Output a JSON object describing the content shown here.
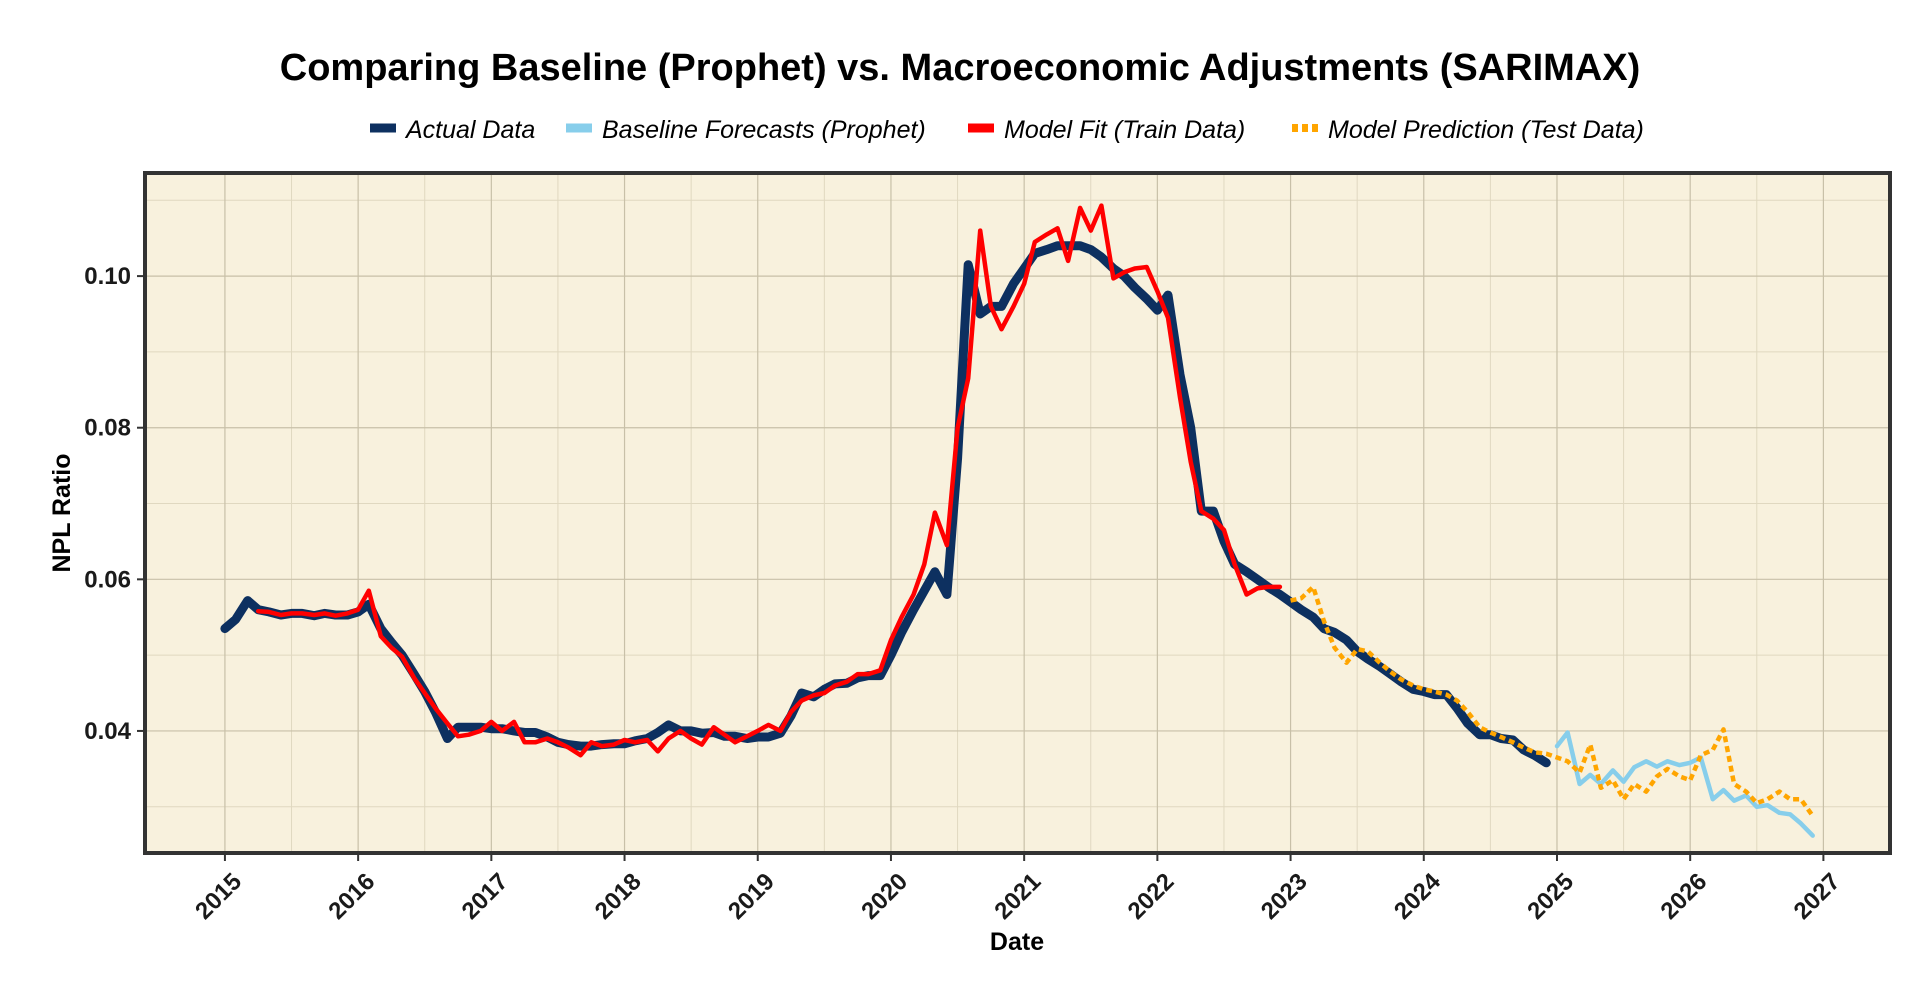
{
  "chart_data": {
    "type": "line",
    "title": "Comparing Baseline (Prophet) vs. Macroeconomic Adjustments (SARIMAX)",
    "xlabel": "Date",
    "ylabel": "NPL Ratio",
    "xlim": [
      2014.4,
      2027.5
    ],
    "ylim": [
      0.0239,
      0.1136
    ],
    "x_ticks": [
      {
        "value": 2015,
        "label": "2015"
      },
      {
        "value": 2016,
        "label": "2016"
      },
      {
        "value": 2017,
        "label": "2017"
      },
      {
        "value": 2018,
        "label": "2018"
      },
      {
        "value": 2019,
        "label": "2019"
      },
      {
        "value": 2020,
        "label": "2020"
      },
      {
        "value": 2021,
        "label": "2021"
      },
      {
        "value": 2022,
        "label": "2022"
      },
      {
        "value": 2023,
        "label": "2023"
      },
      {
        "value": 2024,
        "label": "2024"
      },
      {
        "value": 2025,
        "label": "2025"
      },
      {
        "value": 2026,
        "label": "2026"
      },
      {
        "value": 2027,
        "label": "2027"
      }
    ],
    "y_ticks": [
      {
        "value": 0.04,
        "label": "0.04"
      },
      {
        "value": 0.06,
        "label": "0.06"
      },
      {
        "value": 0.08,
        "label": "0.08"
      },
      {
        "value": 0.1,
        "label": "0.10"
      }
    ],
    "grid": true,
    "background_color": "#f8f1dd",
    "legend_position": "top",
    "series": [
      {
        "name": "Actual Data",
        "color": "#0d3060",
        "style": "solid-thick",
        "x": [
          2015.0,
          2015.08,
          2015.17,
          2015.25,
          2015.33,
          2015.42,
          2015.5,
          2015.58,
          2015.67,
          2015.75,
          2015.83,
          2015.92,
          2016.0,
          2016.08,
          2016.17,
          2016.25,
          2016.33,
          2016.42,
          2016.5,
          2016.58,
          2016.67,
          2016.75,
          2016.83,
          2016.92,
          2017.0,
          2017.08,
          2017.17,
          2017.25,
          2017.33,
          2017.42,
          2017.5,
          2017.58,
          2017.67,
          2017.75,
          2017.83,
          2017.92,
          2018.0,
          2018.08,
          2018.17,
          2018.25,
          2018.33,
          2018.42,
          2018.5,
          2018.58,
          2018.67,
          2018.75,
          2018.83,
          2018.92,
          2019.0,
          2019.08,
          2019.17,
          2019.25,
          2019.33,
          2019.42,
          2019.5,
          2019.58,
          2019.67,
          2019.75,
          2019.83,
          2019.92,
          2020.0,
          2020.08,
          2020.17,
          2020.25,
          2020.33,
          2020.42,
          2020.5,
          2020.58,
          2020.67,
          2020.75,
          2020.83,
          2020.92,
          2021.0,
          2021.08,
          2021.17,
          2021.25,
          2021.33,
          2021.42,
          2021.5,
          2021.58,
          2021.67,
          2021.75,
          2021.83,
          2021.92,
          2022.0,
          2022.08,
          2022.17,
          2022.25,
          2022.33,
          2022.42,
          2022.5,
          2022.58,
          2022.67,
          2022.75,
          2022.83,
          2022.92,
          2023.0,
          2023.08,
          2023.17,
          2023.25,
          2023.33,
          2023.42,
          2023.5,
          2023.58,
          2023.67,
          2023.75,
          2023.83,
          2023.92,
          2024.0,
          2024.08,
          2024.17,
          2024.25,
          2024.33,
          2024.42,
          2024.5,
          2024.58,
          2024.67,
          2024.75,
          2024.83,
          2024.92
        ],
        "y": [
          0.0535,
          0.0547,
          0.0572,
          0.056,
          0.0557,
          0.0553,
          0.0555,
          0.0555,
          0.0552,
          0.0555,
          0.0553,
          0.0553,
          0.0557,
          0.0567,
          0.0535,
          0.0517,
          0.05,
          0.0475,
          0.0452,
          0.0425,
          0.039,
          0.0405,
          0.0405,
          0.0405,
          0.0403,
          0.0403,
          0.04,
          0.0398,
          0.0398,
          0.0392,
          0.0385,
          0.0382,
          0.038,
          0.038,
          0.0382,
          0.0383,
          0.0383,
          0.0387,
          0.039,
          0.0398,
          0.0408,
          0.04,
          0.04,
          0.0397,
          0.0398,
          0.0393,
          0.0393,
          0.039,
          0.0392,
          0.0392,
          0.0397,
          0.042,
          0.045,
          0.0445,
          0.0455,
          0.0462,
          0.0463,
          0.047,
          0.0473,
          0.0473,
          0.05,
          0.053,
          0.056,
          0.0585,
          0.061,
          0.058,
          0.076,
          0.1015,
          0.095,
          0.096,
          0.096,
          0.099,
          0.101,
          0.103,
          0.1035,
          0.104,
          0.104,
          0.104,
          0.1035,
          0.1025,
          0.101,
          0.1,
          0.0985,
          0.097,
          0.0955,
          0.0975,
          0.087,
          0.08,
          0.069,
          0.069,
          0.065,
          0.062,
          0.061,
          0.06,
          0.059,
          0.058,
          0.057,
          0.056,
          0.055,
          0.0535,
          0.053,
          0.052,
          0.0505,
          0.0495,
          0.0485,
          0.0475,
          0.0465,
          0.0455,
          0.0452,
          0.0448,
          0.0448,
          0.043,
          0.041,
          0.0395,
          0.0395,
          0.039,
          0.0388,
          0.0375,
          0.0368,
          0.0358
        ]
      },
      {
        "name": "Baseline Forecasts (Prophet)",
        "color": "#87ceeb",
        "style": "solid",
        "x": [
          2025.0,
          2025.08,
          2025.17,
          2025.25,
          2025.33,
          2025.42,
          2025.5,
          2025.58,
          2025.67,
          2025.75,
          2025.83,
          2025.92,
          2026.0,
          2026.08,
          2026.17,
          2026.25,
          2026.33,
          2026.42,
          2026.5,
          2026.58,
          2026.67,
          2026.75,
          2026.83,
          2026.92
        ],
        "y": [
          0.038,
          0.0398,
          0.033,
          0.0342,
          0.033,
          0.0348,
          0.0333,
          0.0352,
          0.036,
          0.0353,
          0.036,
          0.0355,
          0.0358,
          0.0365,
          0.031,
          0.0322,
          0.0308,
          0.0315,
          0.03,
          0.0302,
          0.0292,
          0.029,
          0.0278,
          0.0262
        ]
      },
      {
        "name": "Model Fit (Train Data)",
        "color": "#ff0000",
        "style": "solid",
        "x": [
          2015.25,
          2015.33,
          2015.42,
          2015.5,
          2015.58,
          2015.67,
          2015.75,
          2015.83,
          2015.92,
          2016.0,
          2016.08,
          2016.17,
          2016.25,
          2016.33,
          2016.42,
          2016.5,
          2016.58,
          2016.67,
          2016.75,
          2016.83,
          2016.92,
          2017.0,
          2017.08,
          2017.17,
          2017.25,
          2017.33,
          2017.42,
          2017.5,
          2017.58,
          2017.67,
          2017.75,
          2017.83,
          2017.92,
          2018.0,
          2018.08,
          2018.17,
          2018.25,
          2018.33,
          2018.42,
          2018.5,
          2018.58,
          2018.67,
          2018.75,
          2018.83,
          2018.92,
          2019.0,
          2019.08,
          2019.17,
          2019.25,
          2019.33,
          2019.42,
          2019.5,
          2019.58,
          2019.67,
          2019.75,
          2019.83,
          2019.92,
          2020.0,
          2020.08,
          2020.17,
          2020.25,
          2020.33,
          2020.42,
          2020.5,
          2020.58,
          2020.67,
          2020.75,
          2020.83,
          2020.92,
          2021.0,
          2021.08,
          2021.17,
          2021.25,
          2021.33,
          2021.42,
          2021.5,
          2021.58,
          2021.67,
          2021.75,
          2021.83,
          2021.92,
          2022.0,
          2022.08,
          2022.17,
          2022.25,
          2022.33,
          2022.42,
          2022.5,
          2022.58,
          2022.67,
          2022.75,
          2022.83,
          2022.92
        ],
        "y": [
          0.0558,
          0.0557,
          0.0553,
          0.0555,
          0.0555,
          0.0553,
          0.0555,
          0.0552,
          0.0555,
          0.056,
          0.0585,
          0.0525,
          0.051,
          0.0498,
          0.047,
          0.045,
          0.043,
          0.041,
          0.0393,
          0.0395,
          0.04,
          0.0412,
          0.04,
          0.0412,
          0.0385,
          0.0385,
          0.039,
          0.0385,
          0.0378,
          0.0368,
          0.0385,
          0.038,
          0.0382,
          0.0388,
          0.0385,
          0.0388,
          0.0373,
          0.039,
          0.04,
          0.039,
          0.0382,
          0.0405,
          0.0395,
          0.0385,
          0.0393,
          0.04,
          0.0408,
          0.04,
          0.0425,
          0.044,
          0.0447,
          0.045,
          0.046,
          0.0465,
          0.0475,
          0.0475,
          0.048,
          0.052,
          0.055,
          0.058,
          0.062,
          0.0688,
          0.0645,
          0.08,
          0.0865,
          0.106,
          0.096,
          0.093,
          0.096,
          0.099,
          0.1045,
          0.1055,
          0.1063,
          0.102,
          0.109,
          0.106,
          0.1093,
          0.0997,
          0.1005,
          0.101,
          0.1012,
          0.098,
          0.0945,
          0.084,
          0.0755,
          0.069,
          0.068,
          0.0665,
          0.062,
          0.058,
          0.0588,
          0.059,
          0.059
        ]
      },
      {
        "name": "Model Prediction (Test Data)",
        "color": "#ffa500",
        "style": "dotted",
        "x": [
          2023.0,
          2023.08,
          2023.17,
          2023.25,
          2023.33,
          2023.42,
          2023.5,
          2023.58,
          2023.67,
          2023.75,
          2023.83,
          2023.92,
          2024.0,
          2024.08,
          2024.17,
          2024.25,
          2024.33,
          2024.42,
          2024.5,
          2024.58,
          2024.67,
          2024.75,
          2024.83,
          2024.92,
          2025.0,
          2025.08,
          2025.17,
          2025.25,
          2025.33,
          2025.42,
          2025.5,
          2025.58,
          2025.67,
          2025.75,
          2025.83,
          2025.92,
          2026.0,
          2026.08,
          2026.17,
          2026.25,
          2026.33,
          2026.42,
          2026.5,
          2026.58,
          2026.67,
          2026.75,
          2026.83,
          2026.92
        ],
        "y": [
          0.0572,
          0.0575,
          0.059,
          0.0545,
          0.051,
          0.049,
          0.0508,
          0.0505,
          0.049,
          0.0478,
          0.0468,
          0.046,
          0.0455,
          0.0452,
          0.0448,
          0.044,
          0.0425,
          0.0405,
          0.0398,
          0.0392,
          0.0385,
          0.0378,
          0.0372,
          0.037,
          0.0365,
          0.036,
          0.0345,
          0.0382,
          0.0325,
          0.0335,
          0.031,
          0.033,
          0.032,
          0.034,
          0.035,
          0.034,
          0.0335,
          0.0368,
          0.0375,
          0.0402,
          0.033,
          0.032,
          0.0305,
          0.031,
          0.032,
          0.031,
          0.031,
          0.0288
        ]
      }
    ]
  }
}
